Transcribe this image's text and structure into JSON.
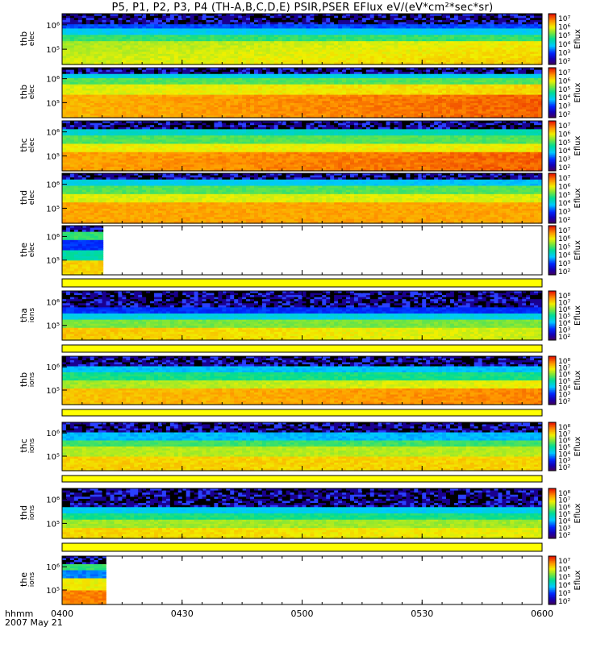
{
  "title": "P5, P1, P2, P3, P4 (TH-A,B,C,D,E) PSIR,PSER EFlux eV/(eV*cm²*sec*sr)",
  "footer": {
    "time_label": "hhmm",
    "date_label": "2007 May 21"
  },
  "colors": {
    "yellow_bar": "#ffff00"
  },
  "chart_data": {
    "type": "heatmap",
    "x_label": "hhmm",
    "x_ticks": [
      "0400",
      "0430",
      "0500",
      "0530",
      "0600"
    ],
    "x_range": [
      "0400",
      "0600"
    ],
    "colorbar_label": "Eflux",
    "panels": [
      {
        "probe": "thb",
        "species": "elec",
        "y_ticks": [
          "10⁶",
          "10⁵"
        ],
        "cbar_ticks": [
          "10⁷",
          "10⁶",
          "10⁵",
          "10⁴",
          "10³",
          "10²"
        ],
        "data_end": 1.0,
        "profile": "elecA"
      },
      {
        "probe": "thb",
        "species": "elec",
        "y_ticks": [
          "10⁶",
          "10⁵"
        ],
        "cbar_ticks": [
          "10⁷",
          "10⁶",
          "10⁵",
          "10⁴",
          "10³",
          "10²"
        ],
        "data_end": 1.0,
        "profile": "elecB"
      },
      {
        "probe": "thc",
        "species": "elec",
        "y_ticks": [
          "10⁶",
          "10⁵"
        ],
        "cbar_ticks": [
          "10⁷",
          "10⁶",
          "10⁵",
          "10⁴",
          "10³",
          "10²"
        ],
        "data_end": 1.0,
        "profile": "elecC"
      },
      {
        "probe": "thd",
        "species": "elec",
        "y_ticks": [
          "10⁶",
          "10⁵"
        ],
        "cbar_ticks": [
          "10⁷",
          "10⁶",
          "10⁵",
          "10⁴",
          "10³",
          "10²"
        ],
        "data_end": 1.0,
        "profile": "elecD"
      },
      {
        "probe": "the",
        "species": "elec",
        "y_ticks": [
          "10⁶",
          "10⁵"
        ],
        "cbar_ticks": [
          "10⁷",
          "10⁶",
          "10⁵",
          "10⁴",
          "10³",
          "10²"
        ],
        "data_end": 0.086,
        "profile": "elecE"
      },
      {
        "probe": "tha",
        "species": "ions",
        "y_ticks": [
          "10⁶",
          "10⁵"
        ],
        "cbar_ticks": [
          "10⁸",
          "10⁷",
          "10⁶",
          "10⁵",
          "10⁴",
          "10³",
          "10²"
        ],
        "data_end": 1.0,
        "profile": "ionA",
        "yellow_below": true
      },
      {
        "probe": "thb",
        "species": "ions",
        "y_ticks": [
          "10⁶",
          "10⁵"
        ],
        "cbar_ticks": [
          "10⁸",
          "10⁷",
          "10⁶",
          "10⁵",
          "10⁴",
          "10³",
          "10²"
        ],
        "data_end": 1.0,
        "profile": "ionB",
        "yellow_below": true
      },
      {
        "probe": "thc",
        "species": "ions",
        "y_ticks": [
          "10⁶",
          "10⁵"
        ],
        "cbar_ticks": [
          "10⁸",
          "10⁷",
          "10⁶",
          "10⁵",
          "10⁴",
          "10³",
          "10²"
        ],
        "data_end": 1.0,
        "profile": "ionC",
        "yellow_below": true
      },
      {
        "probe": "thd",
        "species": "ions",
        "y_ticks": [
          "10⁶",
          "10⁵"
        ],
        "cbar_ticks": [
          "10⁸",
          "10⁷",
          "10⁶",
          "10⁵",
          "10⁴",
          "10³",
          "10²"
        ],
        "data_end": 1.0,
        "profile": "ionD",
        "yellow_below": true
      },
      {
        "probe": "the",
        "species": "ions",
        "y_ticks": [
          "10⁶",
          "10⁵"
        ],
        "cbar_ticks": [
          "10⁷",
          "10⁶",
          "10⁵",
          "10⁴",
          "10³",
          "10²"
        ],
        "data_end": 0.092,
        "profile": "ionE"
      }
    ]
  }
}
